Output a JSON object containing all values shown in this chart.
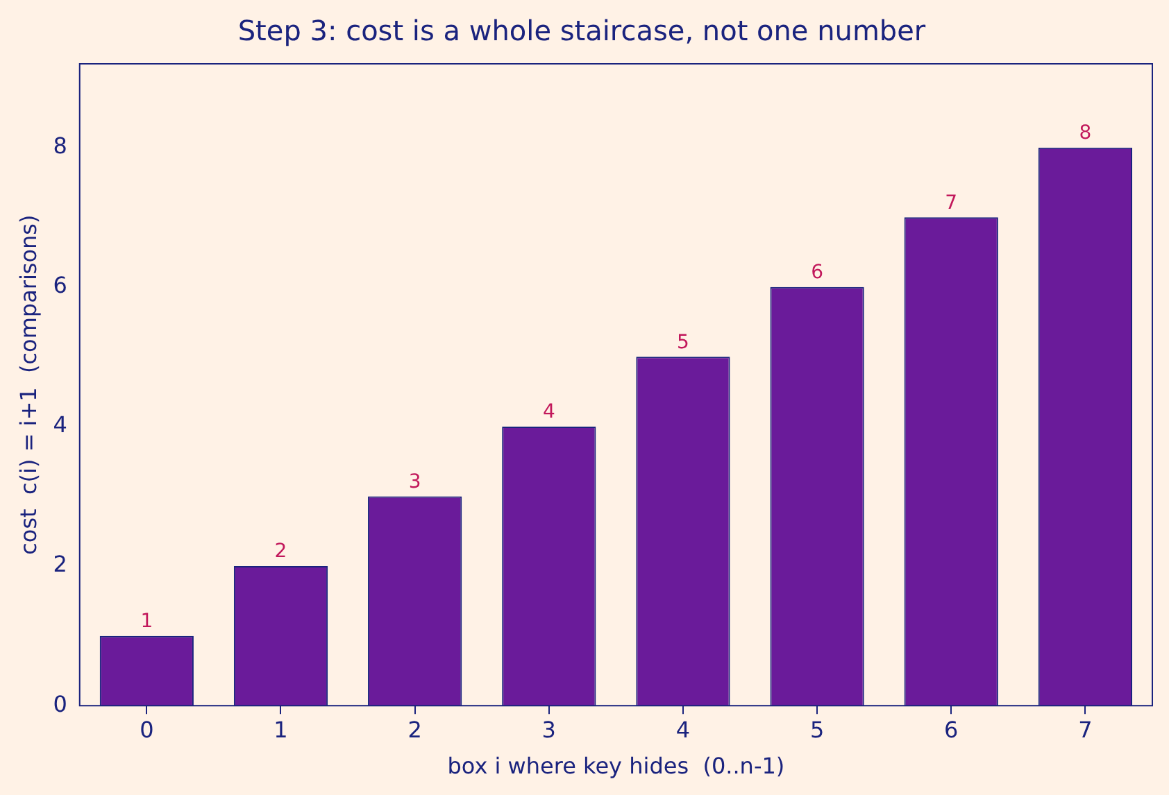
{
  "chart_data": {
    "type": "bar",
    "title": "Step 3: cost is a whole staircase, not one number",
    "xlabel": "box i where key hides  (0..n-1)",
    "ylabel": "cost  c(i) = i+1  (comparisons)",
    "categories": [
      "0",
      "1",
      "2",
      "3",
      "4",
      "5",
      "6",
      "7"
    ],
    "values": [
      1,
      2,
      3,
      4,
      5,
      6,
      7,
      8
    ],
    "color": "#6a1b9a",
    "ylim": [
      0,
      9.2
    ],
    "yticks": [
      0,
      2,
      4,
      6,
      8
    ],
    "grid": false,
    "legend": false,
    "data_labels": true
  }
}
